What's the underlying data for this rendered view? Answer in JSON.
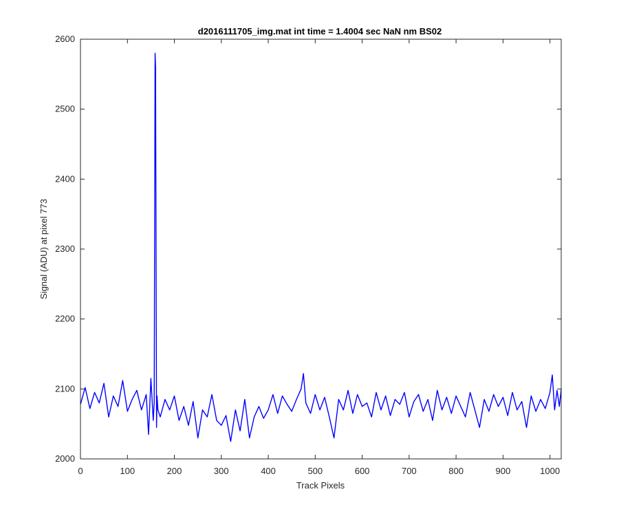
{
  "chart_data": {
    "type": "line",
    "title": "d2016111705_img.mat int time = 1.4004 sec  NaN nm BS02",
    "xlabel": "Track Pixels",
    "ylabel": "Signal (ADU) at pixel 773",
    "xlim": [
      0,
      1024
    ],
    "ylim": [
      2000,
      2600
    ],
    "xticks": [
      0,
      100,
      200,
      300,
      400,
      500,
      600,
      700,
      800,
      900,
      1000
    ],
    "yticks": [
      2000,
      2100,
      2200,
      2300,
      2400,
      2500,
      2600
    ],
    "grid": false,
    "legend": "none",
    "series": [
      {
        "color": "#0000ff",
        "x": [
          0,
          10,
          20,
          30,
          40,
          50,
          60,
          70,
          80,
          90,
          100,
          110,
          120,
          130,
          140,
          145,
          150,
          155,
          157,
          159,
          160,
          161,
          162,
          163,
          165,
          170,
          180,
          190,
          200,
          210,
          220,
          230,
          240,
          250,
          260,
          270,
          280,
          290,
          300,
          310,
          320,
          330,
          340,
          350,
          360,
          370,
          380,
          390,
          400,
          410,
          420,
          430,
          440,
          450,
          460,
          470,
          475,
          480,
          490,
          500,
          510,
          520,
          530,
          540,
          550,
          560,
          570,
          580,
          590,
          600,
          610,
          620,
          630,
          640,
          650,
          660,
          670,
          680,
          690,
          700,
          710,
          720,
          730,
          740,
          750,
          760,
          770,
          780,
          790,
          800,
          810,
          820,
          830,
          840,
          850,
          860,
          870,
          880,
          890,
          900,
          910,
          920,
          930,
          940,
          950,
          960,
          970,
          980,
          990,
          1000,
          1005,
          1010,
          1015,
          1020,
          1024
        ],
        "y": [
          2078,
          2102,
          2072,
          2095,
          2080,
          2108,
          2060,
          2090,
          2075,
          2112,
          2068,
          2085,
          2098,
          2070,
          2092,
          2035,
          2115,
          2055,
          2080,
          2580,
          2560,
          2300,
          2045,
          2090,
          2070,
          2060,
          2085,
          2070,
          2090,
          2055,
          2075,
          2048,
          2082,
          2030,
          2070,
          2060,
          2092,
          2055,
          2048,
          2062,
          2025,
          2070,
          2040,
          2085,
          2030,
          2060,
          2075,
          2058,
          2070,
          2092,
          2065,
          2090,
          2078,
          2068,
          2085,
          2100,
          2122,
          2080,
          2065,
          2092,
          2070,
          2088,
          2060,
          2030,
          2085,
          2070,
          2098,
          2065,
          2092,
          2075,
          2080,
          2060,
          2095,
          2070,
          2090,
          2062,
          2085,
          2078,
          2095,
          2060,
          2082,
          2092,
          2068,
          2085,
          2055,
          2098,
          2070,
          2088,
          2065,
          2090,
          2075,
          2060,
          2095,
          2070,
          2045,
          2085,
          2068,
          2092,
          2075,
          2088,
          2062,
          2095,
          2070,
          2082,
          2045,
          2090,
          2068,
          2085,
          2072,
          2095,
          2120,
          2070,
          2098,
          2075,
          2100
        ]
      }
    ]
  }
}
